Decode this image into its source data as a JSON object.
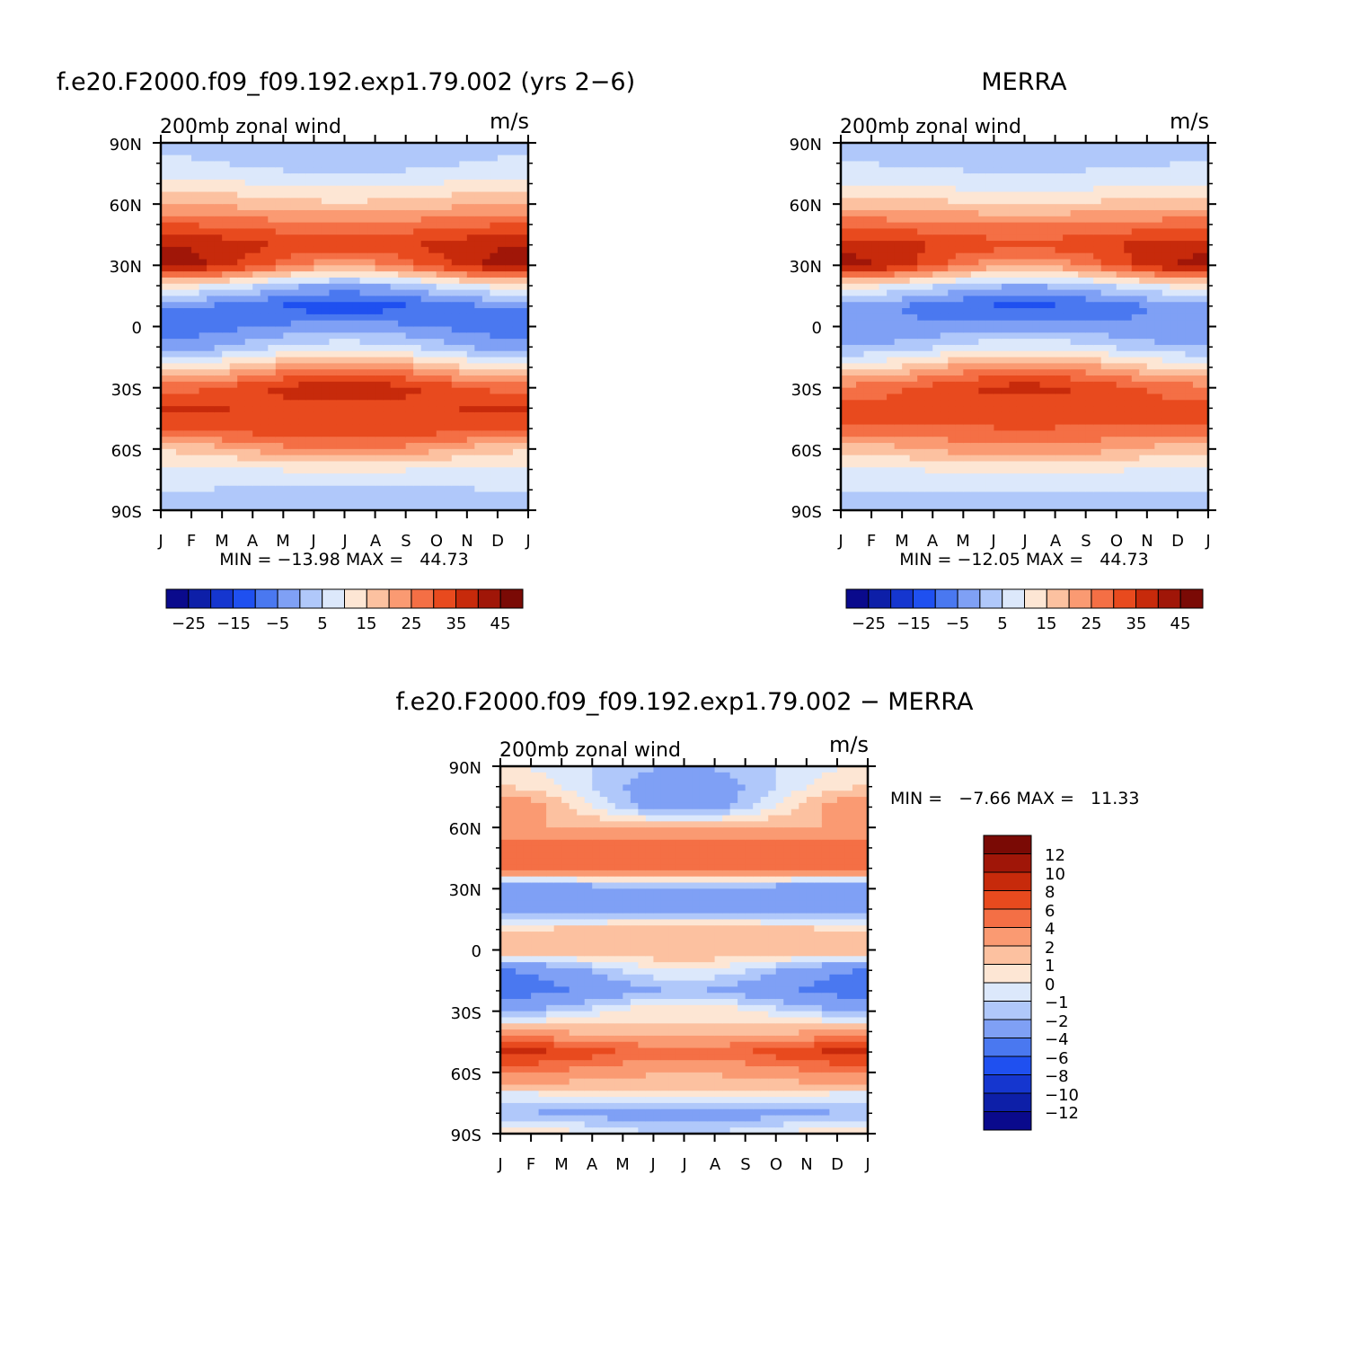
{
  "figure": {
    "variable_label": "200mb zonal wind",
    "units_label": "m/s"
  },
  "chart_data": [
    {
      "type": "heatmap",
      "panel": "model",
      "title": "f.e20.F2000.f09_f09.192.exp1.79.002 (yrs 2−6)",
      "subtitle": "200mb zonal wind",
      "units": "m/s",
      "x_tick_labels": [
        "J",
        "F",
        "M",
        "A",
        "M",
        "J",
        "J",
        "A",
        "S",
        "O",
        "N",
        "D",
        "J"
      ],
      "y_tick_labels": [
        "90N",
        "60N",
        "30N",
        "0",
        "30S",
        "60S",
        "90S"
      ],
      "ylim": [
        -90,
        90
      ],
      "stats_text": "MIN = −13.98 MAX =   44.73",
      "min": -13.98,
      "max": 44.73,
      "colorbar_orientation": "horizontal",
      "colorbar_levels": [
        -25,
        -20,
        -15,
        -10,
        -5,
        0,
        5,
        10,
        15,
        20,
        25,
        30,
        35,
        40,
        45
      ],
      "colorbar_tick_labels": [
        "−25",
        "−15",
        "−5",
        "5",
        "15",
        "25",
        "35",
        "45"
      ],
      "colors": [
        "#0a0a8c",
        "#0d1fa8",
        "#1536cf",
        "#1f50f0",
        "#4a78f0",
        "#7fa0f5",
        "#b0c8fa",
        "#dce8fb",
        "#fde6d4",
        "#fcc1a0",
        "#fa9a72",
        "#f46f45",
        "#e84a1e",
        "#c72a0b",
        "#a01608",
        "#7a0a05"
      ],
      "profile_lat": [
        -90,
        -80,
        -70,
        -60,
        -50,
        -40,
        -30,
        -20,
        -10,
        0,
        10,
        20,
        30,
        40,
        50,
        60,
        70,
        80,
        90
      ],
      "profile_jan": [
        3,
        5,
        8,
        16,
        33,
        36,
        28,
        12,
        -3,
        -8,
        -4,
        12,
        43,
        40,
        30,
        20,
        12,
        6,
        3
      ],
      "profile_jul": [
        2,
        4,
        11,
        26,
        33,
        33,
        39,
        25,
        8,
        -3,
        -13,
        -1,
        22,
        33,
        26,
        16,
        8,
        2,
        0
      ]
    },
    {
      "type": "heatmap",
      "panel": "obs",
      "title": "MERRA",
      "subtitle": "200mb zonal wind",
      "units": "m/s",
      "x_tick_labels": [
        "J",
        "F",
        "M",
        "A",
        "M",
        "J",
        "J",
        "A",
        "S",
        "O",
        "N",
        "D",
        "J"
      ],
      "y_tick_labels": [
        "90N",
        "60N",
        "30N",
        "0",
        "30S",
        "60S",
        "90S"
      ],
      "ylim": [
        -90,
        90
      ],
      "stats_text": "MIN = −12.05 MAX =   44.73",
      "min": -12.05,
      "max": 44.73,
      "colorbar_orientation": "horizontal",
      "colorbar_levels": [
        -25,
        -20,
        -15,
        -10,
        -5,
        0,
        5,
        10,
        15,
        20,
        25,
        30,
        35,
        40,
        45
      ],
      "colorbar_tick_labels": [
        "−25",
        "−15",
        "−5",
        "5",
        "15",
        "25",
        "35",
        "45"
      ],
      "colors": [
        "#0a0a8c",
        "#0d1fa8",
        "#1536cf",
        "#1f50f0",
        "#4a78f0",
        "#7fa0f5",
        "#b0c8fa",
        "#dce8fb",
        "#fde6d4",
        "#fcc1a0",
        "#fa9a72",
        "#f46f45",
        "#e84a1e",
        "#c72a0b",
        "#a01608",
        "#7a0a05"
      ],
      "profile_lat": [
        -90,
        -80,
        -70,
        -60,
        -50,
        -40,
        -30,
        -20,
        -10,
        0,
        10,
        20,
        30,
        40,
        50,
        60,
        70,
        80,
        90
      ],
      "profile_jan": [
        3,
        5,
        9,
        17,
        29,
        32,
        27,
        13,
        0,
        -5,
        -3,
        12,
        42,
        38,
        28,
        18,
        10,
        5,
        3
      ],
      "profile_jul": [
        2,
        5,
        12,
        24,
        30,
        31,
        37,
        25,
        9,
        -3,
        -11,
        0,
        21,
        32,
        25,
        15,
        7,
        3,
        1
      ]
    },
    {
      "type": "heatmap",
      "panel": "difference",
      "title": "f.e20.F2000.f09_f09.192.exp1.79.002 − MERRA",
      "subtitle": "200mb zonal wind",
      "units": "m/s",
      "x_tick_labels": [
        "J",
        "F",
        "M",
        "A",
        "M",
        "J",
        "J",
        "A",
        "S",
        "O",
        "N",
        "D",
        "J"
      ],
      "y_tick_labels": [
        "90N",
        "60N",
        "30N",
        "0",
        "30S",
        "60S",
        "90S"
      ],
      "ylim": [
        -90,
        90
      ],
      "stats_text": "MIN =   −7.66 MAX =   11.33",
      "min": -7.66,
      "max": 11.33,
      "colorbar_orientation": "vertical",
      "colorbar_levels": [
        -12,
        -10,
        -8,
        -6,
        -4,
        -2,
        -1,
        0,
        1,
        2,
        4,
        6,
        8,
        10,
        12
      ],
      "colorbar_tick_labels": [
        "12",
        "10",
        "8",
        "6",
        "4",
        "2",
        "1",
        "0",
        "−1",
        "−2",
        "−4",
        "−6",
        "−8",
        "−10",
        "−12"
      ],
      "colors": [
        "#0a0a8c",
        "#0d1fa8",
        "#1536cf",
        "#1f50f0",
        "#4a78f0",
        "#7fa0f5",
        "#b0c8fa",
        "#dce8fb",
        "#fde6d4",
        "#fcc1a0",
        "#fa9a72",
        "#f46f45",
        "#e84a1e",
        "#c72a0b",
        "#a01608",
        "#7a0a05"
      ],
      "profile_lat": [
        -90,
        -80,
        -70,
        -60,
        -50,
        -40,
        -30,
        -20,
        -10,
        0,
        10,
        20,
        30,
        40,
        50,
        60,
        70,
        80,
        90
      ],
      "profile_jan": [
        1,
        -2,
        0,
        4,
        9,
        2,
        -2,
        -5,
        -4,
        2,
        1,
        -3,
        -4,
        4,
        5,
        2,
        3,
        1,
        0
      ],
      "profile_jul": [
        -1,
        -3,
        1,
        2,
        5,
        1,
        1,
        -2,
        0,
        2,
        2,
        -3,
        -2,
        4,
        6,
        2,
        -3,
        -3,
        -2
      ]
    }
  ]
}
